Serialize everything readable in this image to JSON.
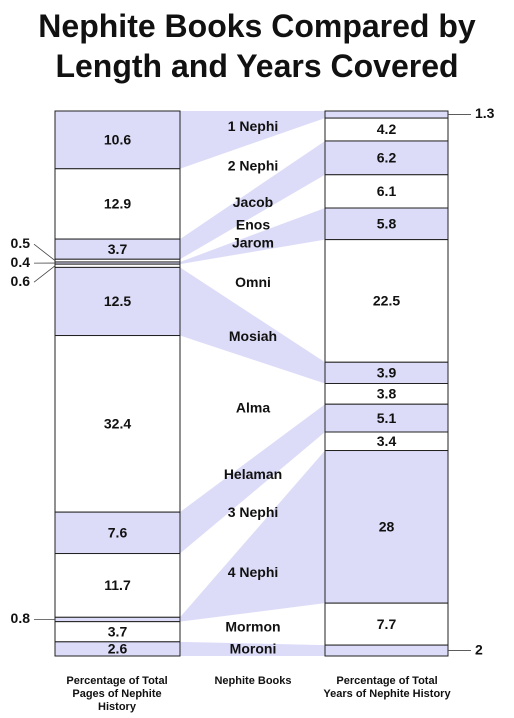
{
  "chart_data": {
    "type": "paired_stack",
    "title": "Nephite Books Compared by Length and Years Covered",
    "categories_label": "Nephite Books",
    "categories": [
      "1 Nephi",
      "2 Nephi",
      "Jacob",
      "Enos",
      "Jarom",
      "Omni",
      "Mosiah",
      "Alma",
      "Helaman",
      "3 Nephi",
      "4 Nephi",
      "Mormon",
      "Moroni"
    ],
    "series": [
      {
        "name": "Percentage of Total Pages of Nephite History",
        "values": [
          10.6,
          12.9,
          3.7,
          0.5,
          0.4,
          0.6,
          12.5,
          32.4,
          7.6,
          11.7,
          0.8,
          3.7,
          2.6
        ]
      },
      {
        "name": "Percentage of Total Years of Nephite History",
        "values": [
          1.3,
          4.2,
          6.2,
          6.1,
          5.8,
          22.5,
          3.9,
          3.8,
          5.1,
          3.4,
          28.0,
          7.7,
          2.0
        ]
      }
    ],
    "colors": [
      "#dcdcf8",
      "#ffffff"
    ]
  }
}
